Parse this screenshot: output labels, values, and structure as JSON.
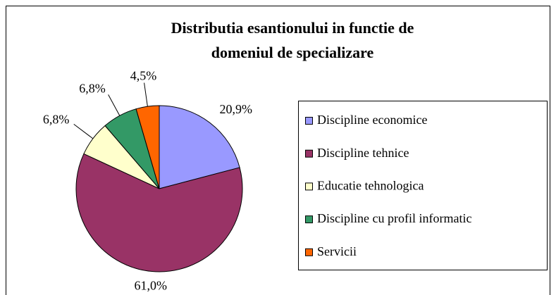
{
  "chart_data": {
    "type": "pie",
    "title": [
      "Distributia esantionului in functie de",
      "domeniul de  specializare"
    ],
    "categories": [
      "Discipline economice",
      "Discipline tehnice",
      "Educatie tehnologica",
      "Discipline cu profil informatic",
      "Servicii"
    ],
    "values": [
      20.9,
      61.0,
      6.8,
      6.8,
      4.5
    ],
    "value_labels": [
      "20,9%",
      "61,0%",
      "6,8%",
      "6,8%",
      "4,5%"
    ],
    "colors": [
      "#9999ff",
      "#993366",
      "#ffffcc",
      "#339966",
      "#ff6600"
    ],
    "legend": "right"
  }
}
